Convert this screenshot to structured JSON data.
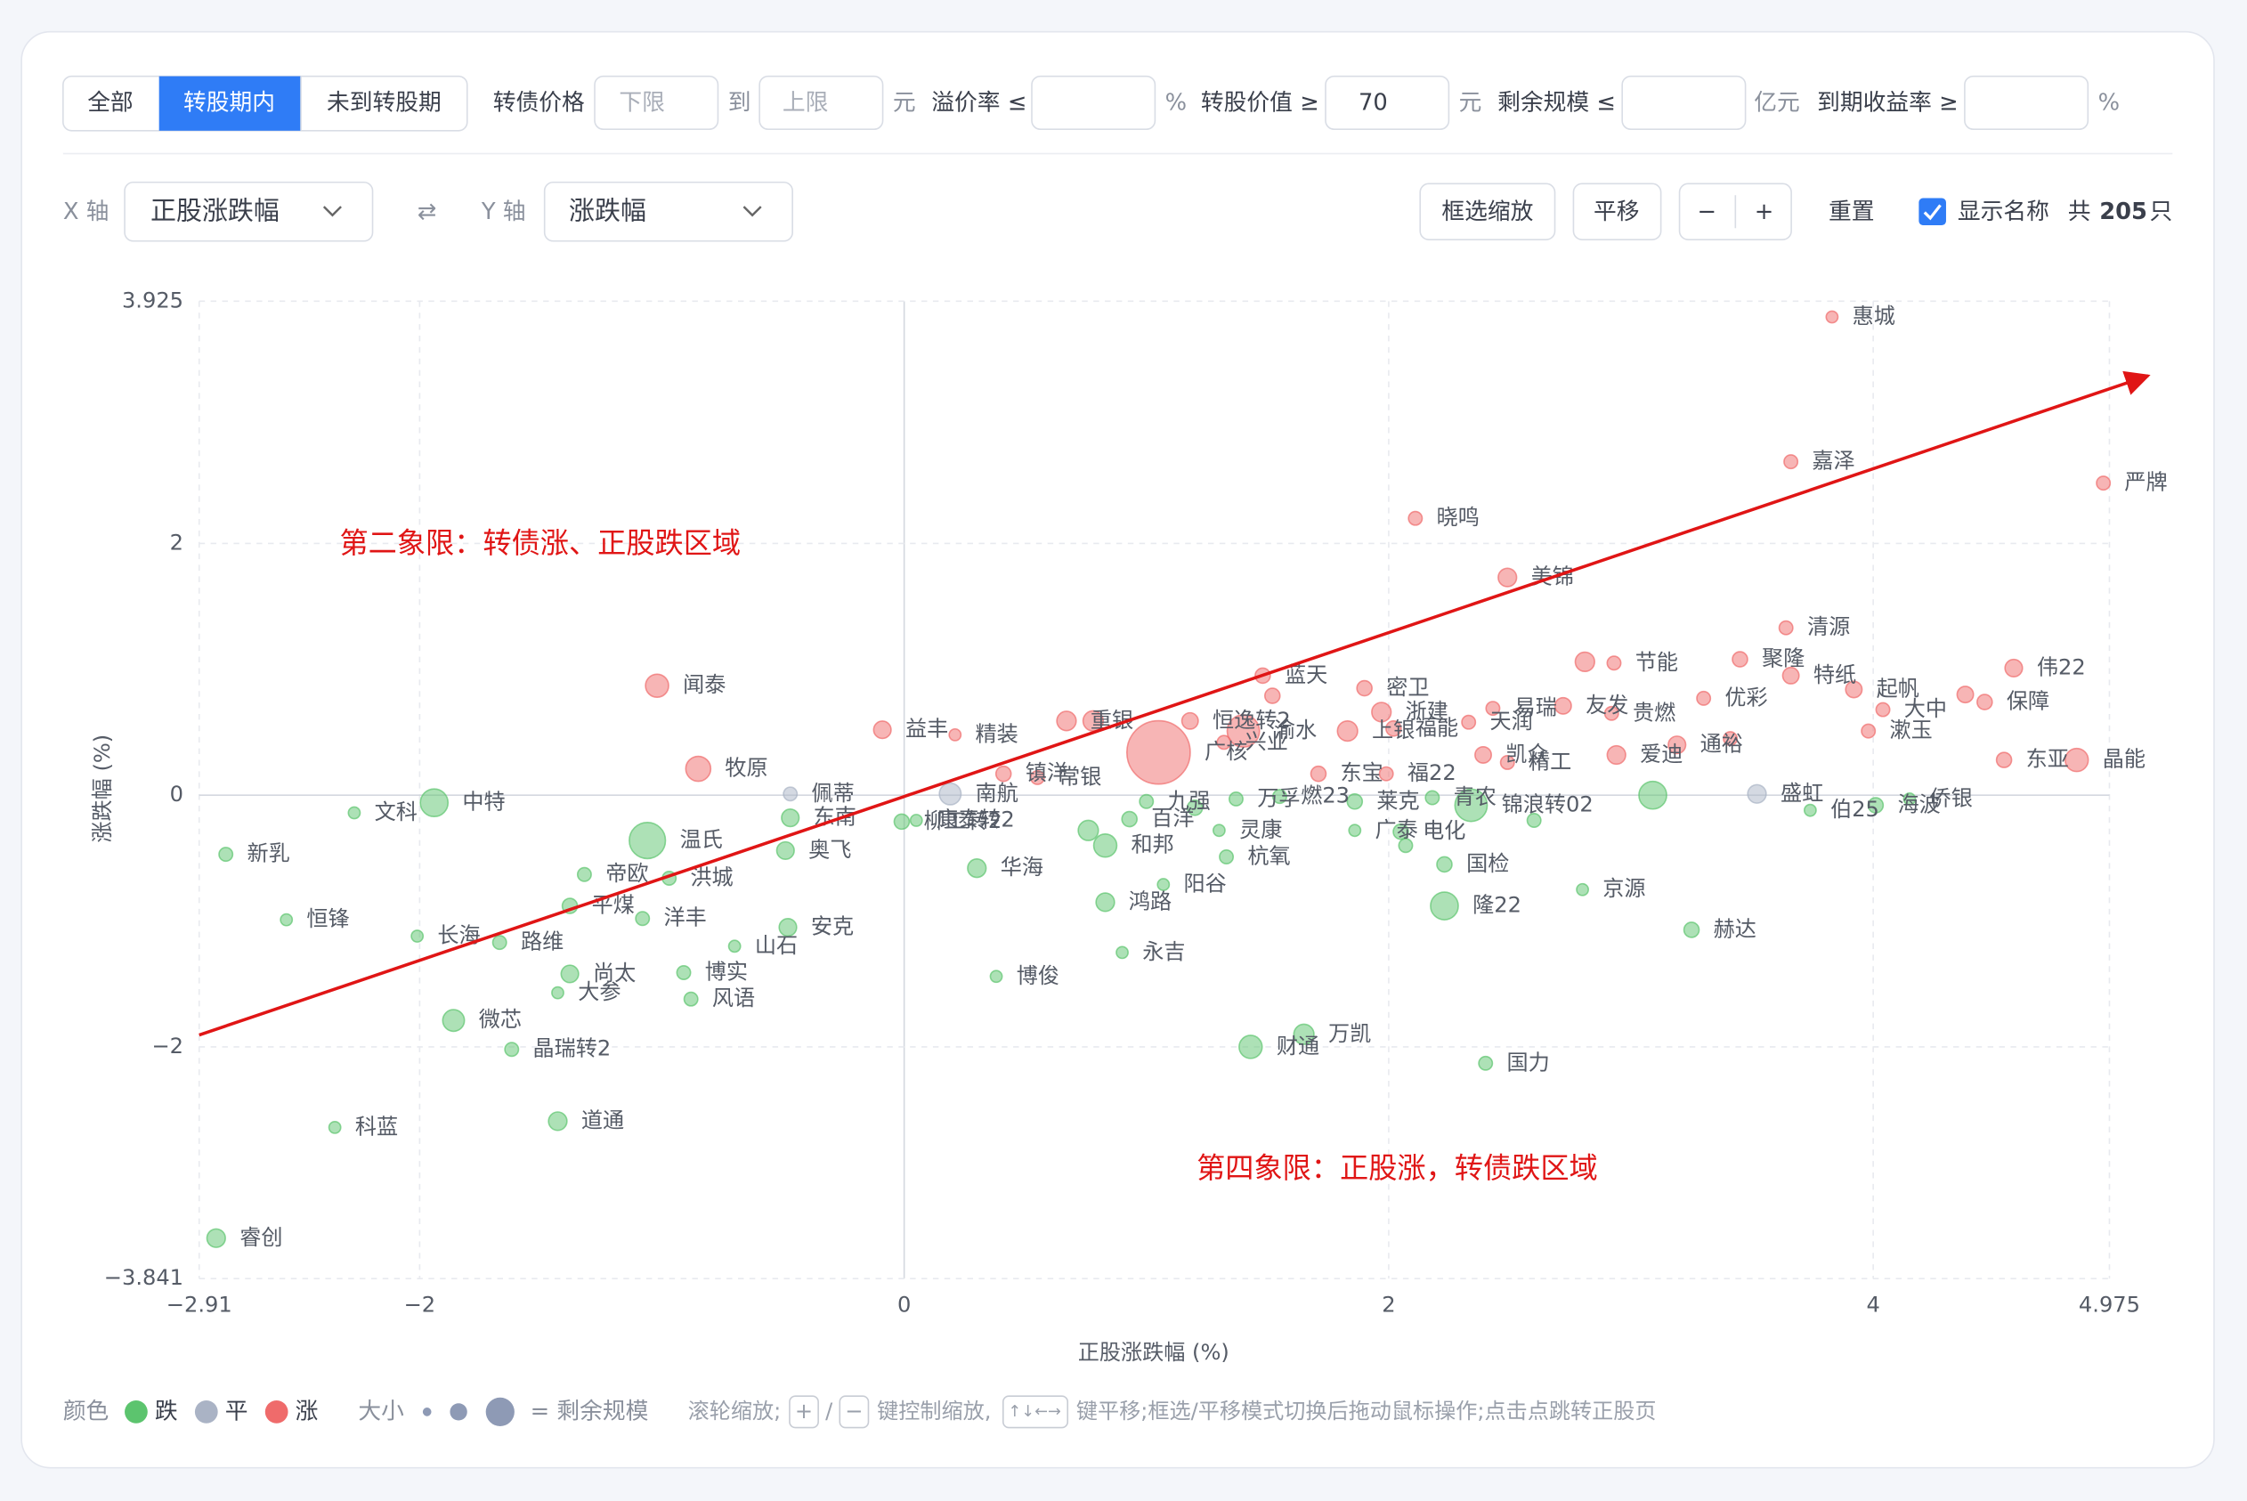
{
  "filter_bar": {
    "tabs": [
      "全部",
      "转股期内",
      "未到转股期"
    ],
    "active_tab": 1,
    "price_label": "转债价格",
    "price_min_placeholder": "下限",
    "to": "到",
    "price_max_placeholder": "上限",
    "unit_yuan": "元",
    "premium_label": "溢价率 ≤",
    "percent": "%",
    "conv_value_label": "转股价值 ≥",
    "conv_value": 70,
    "remaining_label": "剩余规模 ≤",
    "unit_yiyuan": "亿元",
    "ytm_label": "到期收益率 ≥"
  },
  "toolbar": {
    "x_axis_label": "X 轴",
    "x_select": "正股涨跌幅",
    "swap": "⇄",
    "y_axis_label": "Y 轴",
    "y_select": "涨跌幅",
    "buttons": [
      "框选缩放",
      "平移",
      "−",
      "+",
      "重置"
    ],
    "show_names": "显示名称",
    "count_prefix": "共",
    "count": 205,
    "count_suffix": "只"
  },
  "footer": {
    "color_label": "颜色",
    "size_label": "大小",
    "size_meaning": "= 剩余规模",
    "hints": [
      "滚轮缩放;",
      "+",
      "/",
      "−",
      "键控制缩放,",
      "↑↓←→",
      "键平移;框选/平移模式切换后拖动鼠标操作;点击点跳转正股页"
    ]
  },
  "chart_data": {
    "type": "scatter",
    "x_label": "正股涨跌幅 (%)",
    "y_label": "涨跌幅 (%)",
    "grid": true,
    "xlim": [
      -2.91,
      4.975
    ],
    "xticks": [
      {
        "value": -2.91,
        "label": "−2.91"
      },
      {
        "value": -2,
        "label": "−2"
      },
      0,
      2,
      4,
      4.975
    ],
    "ylim": [
      -3.841,
      3.925
    ],
    "yticks": [
      {
        "value": -3.841,
        "label": "−3.841"
      },
      {
        "value": -2,
        "label": "−2"
      },
      0,
      2,
      3.925
    ],
    "annotations": [
      "第二象限：转债涨、正股跌区域",
      "第四象限：正股涨，转债跌区域"
    ],
    "series": [
      {
        "name": "跌",
        "color": "#5cc46e",
        "x": [
          -1.94,
          -2.27,
          -2.8,
          -2.55,
          -2.01,
          -1.67,
          -1.06,
          -1.32,
          -1.38,
          -0.97,
          -0.49,
          -0.47,
          -0.01,
          0.05,
          -1.08,
          -0.48,
          -0.7,
          -1.38,
          -0.91,
          -0.88,
          -1.86,
          -1.43,
          -1.62,
          -2.35,
          -1.43,
          -2.84,
          0.3,
          0.38,
          0.9,
          0.83,
          0.83,
          1.07,
          0.93,
          1.0,
          1.37,
          1.33,
          1.3,
          1.55,
          1.86,
          1.86,
          2.05,
          2.34,
          2.23,
          2.23,
          2.8,
          3.25,
          2.4,
          1.65,
          1.43,
          2.18,
          3.74,
          4.01,
          4.15,
          3.09,
          0.76,
          2.07,
          1.2,
          2.6
        ],
        "values": [
          -0.06,
          -0.14,
          -0.47,
          -0.99,
          -1.12,
          -1.17,
          -0.36,
          -0.63,
          -0.88,
          -0.66,
          -0.44,
          -0.18,
          -0.21,
          -0.2,
          -0.98,
          -1.05,
          -1.2,
          -1.42,
          -1.41,
          -1.62,
          -1.79,
          -1.57,
          -2.02,
          -2.64,
          -2.59,
          -3.52,
          -0.58,
          -1.44,
          -1.25,
          -0.85,
          -0.4,
          -0.71,
          -0.19,
          -0.05,
          -0.03,
          -0.49,
          -0.28,
          -0.01,
          -0.28,
          -0.05,
          -0.29,
          -0.08,
          -0.55,
          -0.88,
          -0.75,
          -1.07,
          -2.13,
          -1.9,
          -2.0,
          -0.02,
          -0.12,
          -0.08,
          -0.03,
          0.0,
          -0.28,
          -0.4,
          -0.1,
          -0.2
        ],
        "sizes": [
          20,
          1,
          2,
          1,
          1,
          2,
          40,
          2,
          3,
          2,
          5,
          5,
          3,
          1,
          2,
          5,
          1,
          5,
          2,
          2,
          10,
          1,
          2,
          1,
          6,
          6,
          6,
          1,
          1,
          6,
          12,
          1,
          3,
          2,
          2,
          2,
          1,
          2,
          1,
          3,
          3,
          30,
          3,
          20,
          1,
          3,
          2,
          8,
          12,
          2,
          1,
          3,
          1,
          20,
          8,
          2,
          3,
          2
        ],
        "labels": [
          "中特",
          "文科",
          "新乳",
          "恒锋",
          "长海",
          "路维",
          "温氏",
          "帝欧",
          "平煤",
          "洪城",
          "奥飞",
          "东南",
          "柳工转2",
          "康泰转2",
          "洋丰",
          "安克",
          "山石",
          "尚太",
          "博实",
          "风语",
          "微芯",
          "大参",
          "晶瑞转2",
          "科蓝",
          "道通",
          "睿创",
          "华海",
          "博俊",
          "永吉",
          "鸿路",
          "和邦",
          "阳谷",
          "百洋",
          "九强",
          "万孚",
          "杭氧",
          "灵康",
          "燃23",
          "广泰",
          "莱克",
          "电化",
          "锦浪转02",
          "国检",
          "隆22",
          "京源",
          "赫达",
          "国力",
          "万凯",
          "财通",
          "青农",
          "伯25",
          "海波",
          "侨银",
          null,
          null,
          null,
          null,
          null
        ]
      },
      {
        "name": "平",
        "color": "#aab3c5",
        "x": [
          -0.47,
          0.19,
          3.52
        ],
        "values": [
          0.01,
          0.01,
          0.01
        ],
        "sizes": [
          2,
          10,
          6
        ],
        "labels": [
          "佩蒂",
          "南航",
          "盛虹"
        ]
      },
      {
        "name": "涨",
        "color": "#ef6b6b",
        "x": [
          3.83,
          3.66,
          4.95,
          2.11,
          2.49,
          3.64,
          2.93,
          3.3,
          3.66,
          3.45,
          3.92,
          4.04,
          4.58,
          4.46,
          3.98,
          4.54,
          4.84,
          -1.02,
          -0.85,
          -0.09,
          0.21,
          1.18,
          1.4,
          1.05,
          0.67,
          1.48,
          1.9,
          1.83,
          1.97,
          2.43,
          2.72,
          2.92,
          2.02,
          2.33,
          2.39,
          2.49,
          2.94,
          3.19,
          1.32,
          1.71,
          1.99,
          0.41,
          0.55,
          2.81,
          0.78,
          1.52,
          3.41,
          4.38
        ],
        "values": [
          3.8,
          2.65,
          2.48,
          2.2,
          1.73,
          1.33,
          1.05,
          0.77,
          0.95,
          1.08,
          0.84,
          0.68,
          1.01,
          0.74,
          0.51,
          0.28,
          0.28,
          0.87,
          0.21,
          0.52,
          0.48,
          0.59,
          0.51,
          0.34,
          0.59,
          0.95,
          0.85,
          0.51,
          0.66,
          0.69,
          0.71,
          0.65,
          0.53,
          0.58,
          0.32,
          0.26,
          0.32,
          0.4,
          0.42,
          0.17,
          0.17,
          0.17,
          0.14,
          1.06,
          0.59,
          0.79,
          0.45,
          0.8
        ],
        "sizes": [
          1,
          2,
          2,
          2,
          6,
          2,
          2,
          2,
          4,
          3,
          4,
          2,
          5,
          3,
          2,
          3,
          12,
          12,
          15,
          5,
          1,
          4,
          30,
          150,
          7,
          3,
          3,
          8,
          7,
          2,
          4,
          2,
          3,
          2,
          4,
          2,
          6,
          5,
          2,
          3,
          2,
          3,
          2,
          7,
          8,
          3,
          2,
          4
        ],
        "labels": [
          "惠城",
          "嘉泽",
          "严牌",
          "晓鸣",
          "美锦",
          "清源",
          "节能",
          "优彩",
          "特纸",
          "聚隆",
          "起帆",
          "大中",
          "伟22",
          "保障",
          "漱玉",
          "东亚",
          "晶能",
          "闻泰",
          "牧原",
          "益丰",
          "精装",
          "恒逸转2",
          "渝水",
          "广核",
          "重银",
          "蓝天",
          "密卫",
          "上银",
          "浙建",
          "易瑞",
          "友发",
          "贵燃",
          "福能",
          "天润",
          "凯众",
          "精工",
          "爱迪",
          "通裕",
          "兴业",
          "东宝",
          "福22",
          "镇洋",
          "常银",
          null,
          null,
          null,
          null,
          null
        ]
      }
    ]
  }
}
